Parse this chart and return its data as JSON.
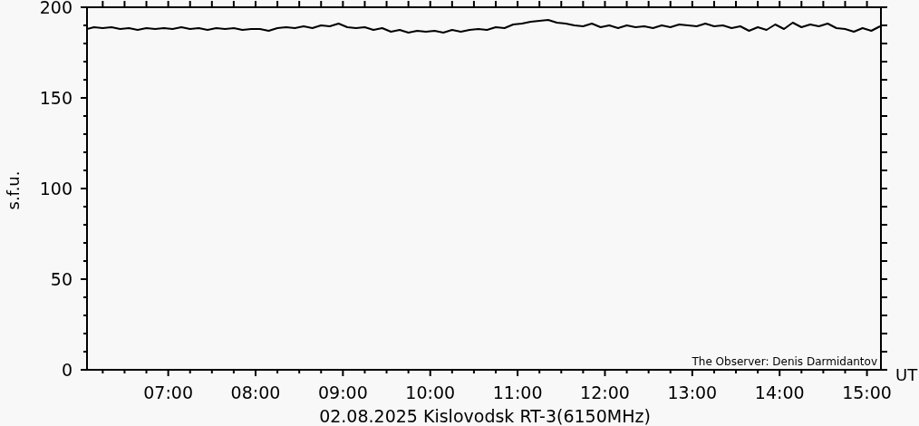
{
  "chart_data": {
    "type": "line",
    "xlabel": "02.08.2025 Kislovodsk RT-3(6150MHz)",
    "ylabel": "s.f.u.",
    "annotations": [
      "UT",
      "The Observer: Denis Darmidantov"
    ],
    "x": [
      6.07,
      6.15,
      6.25,
      6.35,
      6.45,
      6.55,
      6.65,
      6.75,
      6.85,
      6.95,
      7.05,
      7.15,
      7.25,
      7.35,
      7.45,
      7.55,
      7.65,
      7.75,
      7.85,
      7.95,
      8.05,
      8.15,
      8.25,
      8.35,
      8.45,
      8.55,
      8.65,
      8.75,
      8.85,
      8.95,
      9.05,
      9.15,
      9.25,
      9.35,
      9.45,
      9.55,
      9.65,
      9.75,
      9.85,
      9.95,
      10.05,
      10.15,
      10.25,
      10.35,
      10.45,
      10.55,
      10.65,
      10.75,
      10.85,
      10.95,
      11.05,
      11.15,
      11.25,
      11.35,
      11.45,
      11.55,
      11.65,
      11.75,
      11.85,
      11.95,
      12.05,
      12.15,
      12.25,
      12.35,
      12.45,
      12.55,
      12.65,
      12.75,
      12.85,
      12.95,
      13.05,
      13.15,
      13.25,
      13.35,
      13.45,
      13.55,
      13.65,
      13.75,
      13.85,
      13.95,
      14.05,
      14.15,
      14.25,
      14.35,
      14.45,
      14.55,
      14.65,
      14.75,
      14.85,
      14.95,
      15.05,
      15.15
    ],
    "values": [
      188,
      189,
      188.5,
      189,
      188,
      188.5,
      187.5,
      188.5,
      188,
      188.5,
      188,
      189,
      188,
      188.5,
      187.5,
      188.5,
      188,
      188.5,
      187.5,
      188,
      188,
      187,
      188.5,
      189,
      188.5,
      189.5,
      188.5,
      190,
      189.5,
      191,
      189,
      188.5,
      189,
      187.5,
      188.5,
      186.5,
      187.5,
      186,
      187,
      186.5,
      187,
      186,
      187.5,
      186.5,
      187.5,
      188,
      187.5,
      189,
      188.5,
      190.5,
      191,
      192,
      192.5,
      193,
      191.5,
      191,
      190,
      189.5,
      191,
      189,
      190,
      188.5,
      190,
      189,
      189.5,
      188.5,
      190,
      189,
      190.5,
      190,
      189.5,
      191,
      189.5,
      190,
      188.5,
      189.5,
      187,
      189,
      187.5,
      190.5,
      188,
      191.5,
      189,
      190.5,
      189.5,
      191,
      188.5,
      188,
      186.5,
      188.5,
      187,
      189.5
    ],
    "color": "#000000",
    "xlim": [
      6.07,
      15.16
    ],
    "xticks": [
      {
        "value": 6.25,
        "label": null
      },
      {
        "value": 6.5,
        "label": null
      },
      {
        "value": 6.75,
        "label": null
      },
      {
        "value": 7,
        "label": "07:00"
      },
      {
        "value": 7.25,
        "label": null
      },
      {
        "value": 7.5,
        "label": null
      },
      {
        "value": 7.75,
        "label": null
      },
      {
        "value": 8,
        "label": "08:00"
      },
      {
        "value": 8.25,
        "label": null
      },
      {
        "value": 8.5,
        "label": null
      },
      {
        "value": 8.75,
        "label": null
      },
      {
        "value": 9,
        "label": "09:00"
      },
      {
        "value": 9.25,
        "label": null
      },
      {
        "value": 9.5,
        "label": null
      },
      {
        "value": 9.75,
        "label": null
      },
      {
        "value": 10,
        "label": "10:00"
      },
      {
        "value": 10.25,
        "label": null
      },
      {
        "value": 10.5,
        "label": null
      },
      {
        "value": 10.75,
        "label": null
      },
      {
        "value": 11,
        "label": "11:00"
      },
      {
        "value": 11.25,
        "label": null
      },
      {
        "value": 11.5,
        "label": null
      },
      {
        "value": 11.75,
        "label": null
      },
      {
        "value": 12,
        "label": "12:00"
      },
      {
        "value": 12.25,
        "label": null
      },
      {
        "value": 12.5,
        "label": null
      },
      {
        "value": 12.75,
        "label": null
      },
      {
        "value": 13,
        "label": "13:00"
      },
      {
        "value": 13.25,
        "label": null
      },
      {
        "value": 13.5,
        "label": null
      },
      {
        "value": 13.75,
        "label": null
      },
      {
        "value": 14,
        "label": "14:00"
      },
      {
        "value": 14.25,
        "label": null
      },
      {
        "value": 14.5,
        "label": null
      },
      {
        "value": 14.75,
        "label": null
      },
      {
        "value": 15,
        "label": "15:00"
      }
    ],
    "ylim": [
      0,
      200
    ],
    "yticks": [
      0,
      {
        "value": 10,
        "label": null
      },
      {
        "value": 20,
        "label": null
      },
      {
        "value": 30,
        "label": null
      },
      {
        "value": 40,
        "label": null
      },
      50,
      {
        "value": 60,
        "label": null
      },
      {
        "value": 70,
        "label": null
      },
      {
        "value": 80,
        "label": null
      },
      {
        "value": 90,
        "label": null
      },
      100,
      {
        "value": 110,
        "label": null
      },
      {
        "value": 120,
        "label": null
      },
      {
        "value": 130,
        "label": null
      },
      {
        "value": 140,
        "label": null
      },
      150,
      {
        "value": 160,
        "label": null
      },
      {
        "value": 170,
        "label": null
      },
      {
        "value": 180,
        "label": null
      },
      {
        "value": 190,
        "label": null
      },
      200
    ],
    "grid": false,
    "legend": false,
    "marker": "none",
    "line_style": "solid"
  }
}
